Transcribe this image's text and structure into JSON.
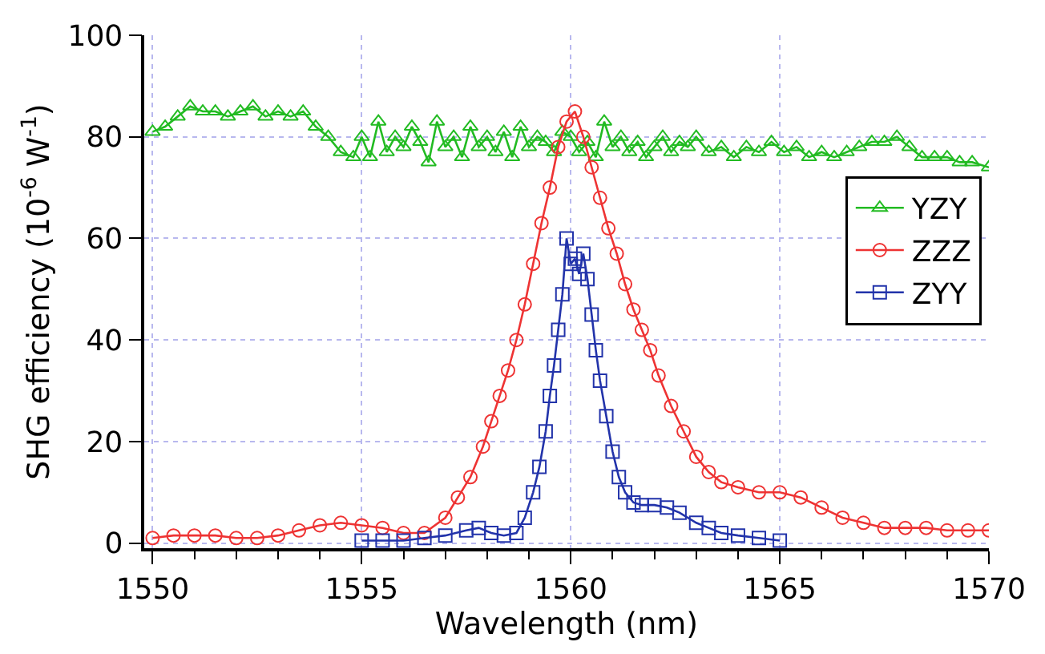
{
  "chart_data": {
    "type": "line",
    "xlabel": "Wavelength (nm)",
    "ylabel": "SHG efficiency (10$^{-6}$ W$^{-1}$)",
    "xlim": [
      1549.8,
      1570
    ],
    "ylim": [
      -1,
      100
    ],
    "xticks": [
      1550,
      1555,
      1560,
      1565,
      1570
    ],
    "yticks": [
      0,
      20,
      40,
      60,
      80,
      100
    ],
    "grid": true,
    "legend": "right",
    "line_style": "solid",
    "series": [
      {
        "name": "YZY",
        "color": "#22bb22",
        "marker": "triangle",
        "x": [
          1550,
          1550.3,
          1550.6,
          1550.9,
          1551.2,
          1551.5,
          1551.8,
          1552.1,
          1552.4,
          1552.7,
          1553,
          1553.3,
          1553.6,
          1553.9,
          1554.2,
          1554.5,
          1554.8,
          1555,
          1555.2,
          1555.4,
          1555.6,
          1555.8,
          1556,
          1556.2,
          1556.4,
          1556.6,
          1556.8,
          1557,
          1557.2,
          1557.4,
          1557.6,
          1557.8,
          1558,
          1558.2,
          1558.4,
          1558.6,
          1558.8,
          1559,
          1559.2,
          1559.4,
          1559.6,
          1559.8,
          1560,
          1560.2,
          1560.4,
          1560.6,
          1560.8,
          1561,
          1561.2,
          1561.4,
          1561.6,
          1561.8,
          1562,
          1562.2,
          1562.4,
          1562.6,
          1562.8,
          1563,
          1563.3,
          1563.6,
          1563.9,
          1564.2,
          1564.5,
          1564.8,
          1565.1,
          1565.4,
          1565.7,
          1566,
          1566.3,
          1566.6,
          1566.9,
          1567.2,
          1567.5,
          1567.8,
          1568.1,
          1568.4,
          1568.7,
          1569,
          1569.3,
          1569.6,
          1570
        ],
        "values": [
          81,
          82,
          84,
          86,
          85,
          85,
          84,
          85,
          86,
          84,
          85,
          84,
          85,
          82,
          80,
          77,
          76,
          80,
          76,
          83,
          77,
          80,
          78,
          82,
          79,
          75,
          83,
          78,
          80,
          76,
          82,
          78,
          80,
          77,
          81,
          76,
          82,
          78,
          80,
          79,
          77,
          81,
          80,
          77,
          79,
          76,
          83,
          78,
          80,
          77,
          79,
          76,
          78,
          80,
          77,
          79,
          78,
          80,
          77,
          78,
          76,
          78,
          77,
          79,
          77,
          78,
          76,
          77,
          76,
          77,
          78,
          79,
          79,
          80,
          78,
          76,
          76,
          76,
          75,
          75,
          74
        ]
      },
      {
        "name": "ZZZ",
        "color": "#ee3333",
        "marker": "circle",
        "x": [
          1550,
          1550.5,
          1551,
          1551.5,
          1552,
          1552.5,
          1553,
          1553.5,
          1554,
          1554.5,
          1555,
          1555.5,
          1556,
          1556.5,
          1557,
          1557.3,
          1557.6,
          1557.9,
          1558.1,
          1558.3,
          1558.5,
          1558.7,
          1558.9,
          1559.1,
          1559.3,
          1559.5,
          1559.7,
          1559.9,
          1560.1,
          1560.3,
          1560.5,
          1560.7,
          1560.9,
          1561.1,
          1561.3,
          1561.5,
          1561.7,
          1561.9,
          1562.1,
          1562.4,
          1562.7,
          1563,
          1563.3,
          1563.6,
          1564,
          1564.5,
          1565,
          1565.5,
          1566,
          1566.5,
          1567,
          1567.5,
          1568,
          1568.5,
          1569,
          1569.5,
          1570
        ],
        "values": [
          1,
          1.5,
          1.5,
          1.5,
          1,
          1,
          1.5,
          2.5,
          3.5,
          4,
          3.5,
          3,
          2,
          2,
          5,
          9,
          13,
          19,
          24,
          29,
          34,
          40,
          47,
          55,
          63,
          70,
          78,
          83,
          85,
          80,
          74,
          68,
          62,
          57,
          51,
          46,
          42,
          38,
          33,
          27,
          22,
          17,
          14,
          12,
          11,
          10,
          10,
          9,
          7,
          5,
          4,
          3,
          3,
          3,
          2.5,
          2.5,
          2.5
        ]
      },
      {
        "name": "ZYY",
        "color": "#2233aa",
        "marker": "square",
        "x": [
          1555,
          1555.5,
          1556,
          1556.5,
          1557,
          1557.5,
          1557.8,
          1558.1,
          1558.4,
          1558.7,
          1558.9,
          1559.1,
          1559.25,
          1559.4,
          1559.5,
          1559.6,
          1559.7,
          1559.8,
          1559.9,
          1560,
          1560.1,
          1560.2,
          1560.3,
          1560.4,
          1560.5,
          1560.6,
          1560.7,
          1560.85,
          1561,
          1561.15,
          1561.3,
          1561.5,
          1561.7,
          1562,
          1562.3,
          1562.6,
          1563,
          1563.3,
          1563.6,
          1564,
          1564.5,
          1565
        ],
        "values": [
          0.5,
          0.5,
          0.5,
          1,
          1.5,
          2.5,
          3,
          2,
          1.5,
          2,
          5,
          10,
          15,
          22,
          29,
          35,
          42,
          49,
          60,
          55,
          56,
          53,
          57,
          52,
          45,
          38,
          32,
          25,
          18,
          13,
          10,
          8,
          7.5,
          7.5,
          7,
          6,
          4,
          3,
          2,
          1.5,
          1,
          0.5
        ]
      }
    ]
  }
}
